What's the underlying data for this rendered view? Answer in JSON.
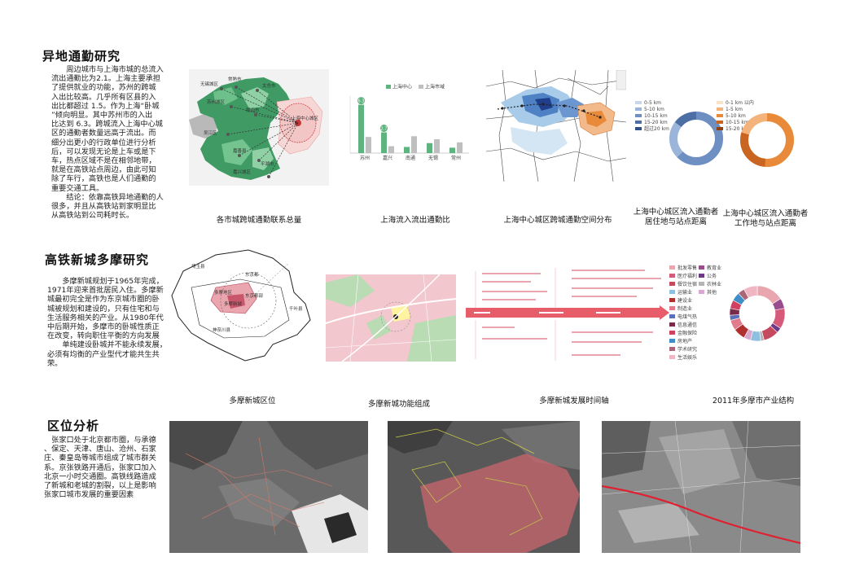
{
  "section1": {
    "title": "异地通勤研究",
    "lines": [
      "　　周边城市与上海市城的总流入",
      "流出通勤比为2.1。上海主要承担",
      "了提供就业的功能，苏州的跨城",
      "入出比较高。几乎所有区县的入",
      "出比都超过 1.5。作为上海“卧城",
      "”倾向明显。其中苏州市的入出",
      "比达到 6.3。跨城流入上海中心城",
      "区的通勤者数量远高于流出。而",
      "细分出更小的行政单位进行分析",
      "后，可以发现无论是上车或是下",
      "车，热点区域不是在相邻地带，",
      "就是在高铁站点周边，由此可知",
      "除了车行，高铁也是人们通勤的",
      "重要交通工具。",
      "　　结论：依靠高铁异地通勤的人",
      "很多，并且从高铁站到家明显比",
      "从高铁站到公司耗时长。"
    ],
    "captions": {
      "map": "各市城跨城通勤联系总量",
      "bar": "上海流入流出通勤比",
      "odmap": "上海中心城区跨城通勤空间分布",
      "donut1": [
        "上海中心城区流入通勤者",
        "居住地与站点距离"
      ],
      "donut2": [
        "上海中心城区流入通勤者",
        "工作地与站点距离"
      ]
    },
    "map_labels": [
      "无锡城区",
      "常熟市",
      "太仓市",
      "苏州城区",
      "昆山市",
      "上海中心城区",
      "吴江区",
      "嘉善县",
      "平湖市",
      "嘉兴城区"
    ],
    "bar_legend": [
      "上海中心",
      "上海市域"
    ],
    "donut1_legend": [
      "0-5 km",
      "5-10 km",
      "10-15 km",
      "15-20 km",
      "超过20 km"
    ],
    "donut2_legend": [
      "0-1 km 以内",
      "1-5 km",
      "5-10 km",
      "10-15 km",
      "15-20 km"
    ]
  },
  "chart_data": {
    "type": "bar",
    "categories": [
      "苏州",
      "嘉兴",
      "南通",
      "无锡",
      "常州"
    ],
    "legend": [
      "上海中心",
      "上海市域"
    ],
    "series": [
      {
        "name": "上海中心",
        "values": [
          6.3,
          2.7,
          0.8,
          1.3,
          0.7
        ]
      },
      {
        "name": "上海市域",
        "values": [
          2.1,
          0.9,
          2.2,
          1.8,
          1.4
        ]
      }
    ],
    "data_labels": [
      "6.3",
      "2.7"
    ],
    "ylim": [
      0,
      7
    ]
  },
  "section2": {
    "title": "高铁新城多摩研究",
    "lines": [
      "　　多摩新城规划于1965年完成，",
      "1971年迎来首批居民入住。多摩新",
      "城最初完全是作为东京城市圈的卧",
      "城被规划和建设的，只有住宅和与",
      "生活服务相关的产业。从1980年代",
      "中后期开始，多摩市的卧城性质正",
      "在改变，转向职住平衡的方向发展",
      "　　单纯建设卧城并不能永续发展，",
      "必须有均衡的产业型代才能共生共",
      "荣。"
    ],
    "captions": {
      "location": "多摩新城区位",
      "function": "多摩新城功能组成",
      "timeline": "多摩新城发展时间轴",
      "industry": "2011年多摩市产业结构"
    },
    "map_labels": [
      "埼玉县",
      "东京都",
      "多摩地区",
      "东京都部",
      "多摩新城",
      "神奈川县",
      "千叶县"
    ],
    "industry_legend": [
      "批发零售",
      "教育业",
      "医疗福利",
      "公务",
      "餐饮住宿",
      "农林业",
      "运输业",
      "其他",
      "建设业",
      "制造业",
      "电煤气热",
      "信息通信",
      "金融保险",
      "房地产",
      "学术研究",
      "生活娱乐"
    ]
  },
  "section3": {
    "title": "区位分析",
    "lines": [
      "　张家口处于北京都市圈，与承德",
      "、保定、天津、唐山、沧州、石家",
      "庄、秦皇岛等城市组成了城市群关",
      "系。京张铁路开通后，张家口加入",
      "北京一小时交通圈。高铁线路造成",
      "了新城和老城的割裂，以上是影响",
      "张家口城市发展的重要因素"
    ]
  },
  "colors": {
    "green": "#5fb37e",
    "grey_bar": "#bfbfbf",
    "blue_donut": "#6d8fc2",
    "orange_donut": "#e88a3a",
    "pink": "#e9a6ae",
    "arrow": "#e85d6a"
  }
}
